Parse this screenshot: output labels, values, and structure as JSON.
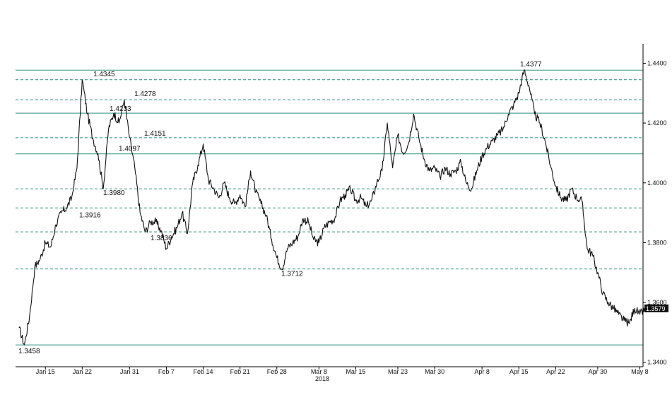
{
  "chart_data": {
    "type": "line",
    "title": "",
    "xlabel": "",
    "ylabel": "",
    "x_year_label": "2018",
    "ylim": [
      1.3385,
      1.4465
    ],
    "xlim_days": [
      0,
      117
    ],
    "y_ticks": [
      "1.3400",
      "1.3600",
      "1.3800",
      "1.4000",
      "1.4200",
      "1.4400"
    ],
    "x_ticks": [
      {
        "label": "Jan 15",
        "date": "2018-01-15"
      },
      {
        "label": "Jan 22",
        "date": "2018-01-22"
      },
      {
        "label": "Jan 31",
        "date": "2018-01-31"
      },
      {
        "label": "Feb 7",
        "date": "2018-02-07"
      },
      {
        "label": "Feb 14",
        "date": "2018-02-14"
      },
      {
        "label": "Feb 21",
        "date": "2018-02-21"
      },
      {
        "label": "Feb 28",
        "date": "2018-02-28"
      },
      {
        "label": "Mar 8",
        "date": "2018-03-08"
      },
      {
        "label": "Mar 15",
        "date": "2018-03-15"
      },
      {
        "label": "Mar 23",
        "date": "2018-03-23"
      },
      {
        "label": "Mar 30",
        "date": "2018-03-30"
      },
      {
        "label": "Apr 8",
        "date": "2018-04-08"
      },
      {
        "label": "Apr 15",
        "date": "2018-04-15"
      },
      {
        "label": "Apr 22",
        "date": "2018-04-22"
      },
      {
        "label": "Apr 30",
        "date": "2018-04-30"
      },
      {
        "label": "May 8",
        "date": "2018-05-08"
      }
    ],
    "levels": [
      {
        "label": "1.4377",
        "value": 1.4377,
        "style": "solid"
      },
      {
        "label": "1.4345",
        "value": 1.4345,
        "style": "dashed"
      },
      {
        "label": "1.4278",
        "value": 1.4278,
        "style": "dashed"
      },
      {
        "label": "1.4233",
        "value": 1.4233,
        "style": "solid"
      },
      {
        "label": "1.4151",
        "value": 1.4151,
        "style": "dashed"
      },
      {
        "label": "1.4097",
        "value": 1.4097,
        "style": "solid"
      },
      {
        "label": "1.3980",
        "value": 1.398,
        "style": "dashed"
      },
      {
        "label": "1.3916",
        "value": 1.3916,
        "style": "dashed"
      },
      {
        "label": "1.3836",
        "value": 1.3836,
        "style": "dashed"
      },
      {
        "label": "1.3712",
        "value": 1.3712,
        "style": "dashed"
      },
      {
        "label": "1.3458",
        "value": 1.3458,
        "style": "solid"
      }
    ],
    "last_value": "1.3579",
    "series": [
      {
        "x": [
          "2018-01-10",
          "2018-01-11",
          "2018-01-12",
          "2018-01-13",
          "2018-01-14",
          "2018-01-15",
          "2018-01-16",
          "2018-01-17",
          "2018-01-18",
          "2018-01-19",
          "2018-01-20",
          "2018-01-21",
          "2018-01-22",
          "2018-01-23",
          "2018-01-24",
          "2018-01-25",
          "2018-01-26",
          "2018-01-27",
          "2018-01-28",
          "2018-01-29",
          "2018-01-30",
          "2018-01-31",
          "2018-02-01",
          "2018-02-02",
          "2018-02-03",
          "2018-02-04",
          "2018-02-05",
          "2018-02-06",
          "2018-02-07",
          "2018-02-08",
          "2018-02-09",
          "2018-02-10",
          "2018-02-11",
          "2018-02-12",
          "2018-02-13",
          "2018-02-14",
          "2018-02-15",
          "2018-02-16",
          "2018-02-17",
          "2018-02-18",
          "2018-02-19",
          "2018-02-20",
          "2018-02-21",
          "2018-02-22",
          "2018-02-23",
          "2018-02-24",
          "2018-02-25",
          "2018-02-26",
          "2018-02-27",
          "2018-02-28",
          "2018-03-01",
          "2018-03-02",
          "2018-03-03",
          "2018-03-04",
          "2018-03-05",
          "2018-03-06",
          "2018-03-07",
          "2018-03-08",
          "2018-03-09",
          "2018-03-10",
          "2018-03-11",
          "2018-03-12",
          "2018-03-13",
          "2018-03-14",
          "2018-03-15",
          "2018-03-16",
          "2018-03-17",
          "2018-03-18",
          "2018-03-19",
          "2018-03-20",
          "2018-03-21",
          "2018-03-22",
          "2018-03-23",
          "2018-03-24",
          "2018-03-25",
          "2018-03-26",
          "2018-03-27",
          "2018-03-28",
          "2018-03-29",
          "2018-03-30",
          "2018-03-31",
          "2018-04-01",
          "2018-04-02",
          "2018-04-03",
          "2018-04-04",
          "2018-04-05",
          "2018-04-06",
          "2018-04-07",
          "2018-04-08",
          "2018-04-09",
          "2018-04-10",
          "2018-04-11",
          "2018-04-12",
          "2018-04-13",
          "2018-04-14",
          "2018-04-15",
          "2018-04-16",
          "2018-04-17",
          "2018-04-18",
          "2018-04-19",
          "2018-04-20",
          "2018-04-21",
          "2018-04-22",
          "2018-04-23",
          "2018-04-24",
          "2018-04-25",
          "2018-04-26",
          "2018-04-27",
          "2018-04-28",
          "2018-04-29",
          "2018-04-30",
          "2018-05-01",
          "2018-05-02",
          "2018-05-03",
          "2018-05-04",
          "2018-05-05",
          "2018-05-06",
          "2018-05-07",
          "2018-05-08",
          "2018-05-09"
        ],
        "values": [
          1.3515,
          1.3458,
          1.3555,
          1.372,
          1.3745,
          1.38,
          1.3785,
          1.386,
          1.39,
          1.3916,
          1.395,
          1.405,
          1.4345,
          1.423,
          1.415,
          1.4097,
          1.398,
          1.418,
          1.4233,
          1.42,
          1.4278,
          1.4151,
          1.405,
          1.39,
          1.3836,
          1.387,
          1.387,
          1.384,
          1.378,
          1.382,
          1.385,
          1.39,
          1.383,
          1.4,
          1.406,
          1.413,
          1.401,
          1.398,
          1.395,
          1.4,
          1.395,
          1.393,
          1.396,
          1.392,
          1.404,
          1.397,
          1.393,
          1.389,
          1.3812,
          1.375,
          1.3712,
          1.378,
          1.38,
          1.382,
          1.388,
          1.387,
          1.381,
          1.38,
          1.385,
          1.387,
          1.388,
          1.394,
          1.396,
          1.398,
          1.394,
          1.395,
          1.392,
          1.394,
          1.4,
          1.404,
          1.42,
          1.405,
          1.416,
          1.41,
          1.413,
          1.423,
          1.415,
          1.408,
          1.404,
          1.405,
          1.402,
          1.405,
          1.403,
          1.404,
          1.407,
          1.4,
          1.398,
          1.404,
          1.409,
          1.412,
          1.414,
          1.416,
          1.418,
          1.423,
          1.426,
          1.43,
          1.4377,
          1.432,
          1.423,
          1.42,
          1.414,
          1.406,
          1.399,
          1.395,
          1.394,
          1.398,
          1.395,
          1.394,
          1.378,
          1.376,
          1.37,
          1.363,
          1.36,
          1.358,
          1.356,
          1.354,
          1.353,
          1.358,
          1.356,
          1.3579
        ]
      }
    ],
    "grid": false,
    "legend": "none"
  }
}
